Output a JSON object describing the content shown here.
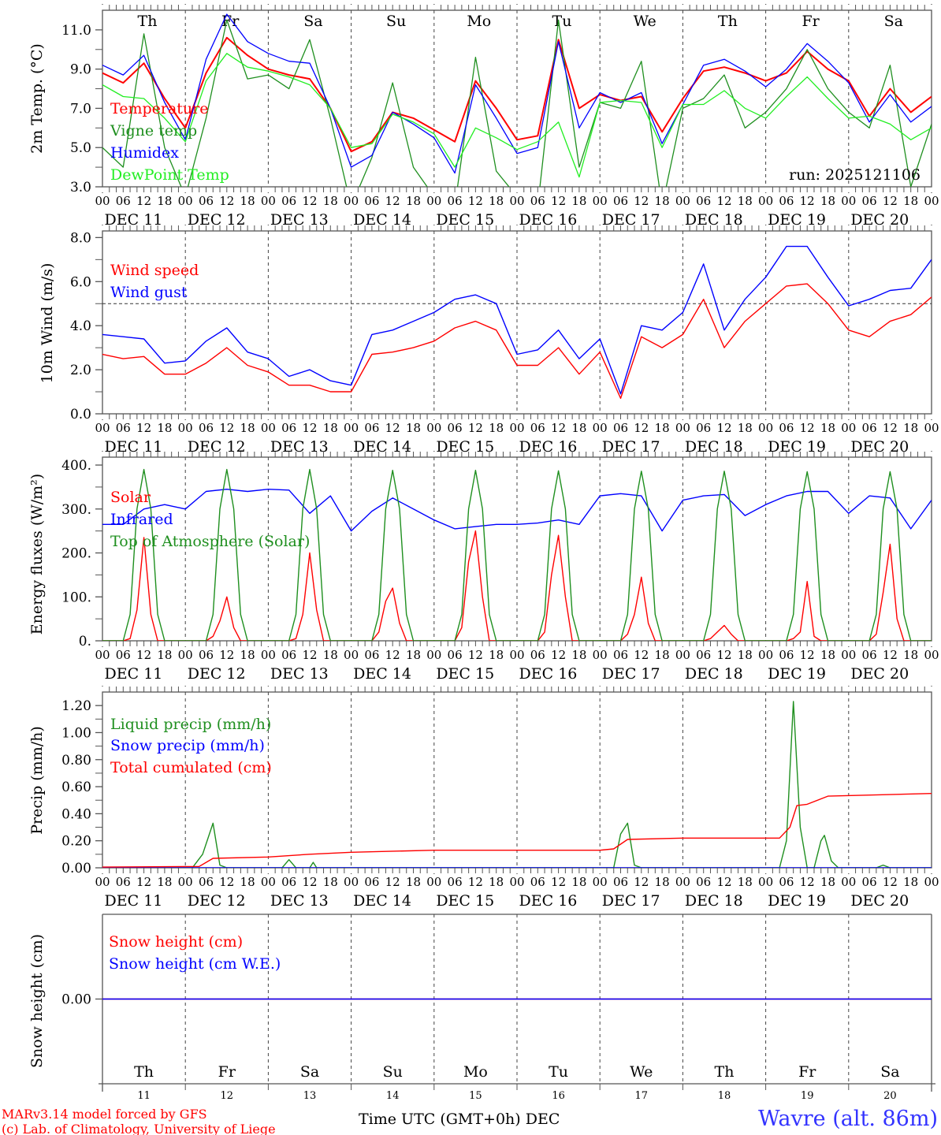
{
  "colors": {
    "temperature": "#ff0000",
    "vigne": "#1f8f1f",
    "humidex": "#0000ff",
    "dewpoint": "#22ee22",
    "weekend": "#ff0000",
    "weekday": "#000000"
  },
  "days": [
    {
      "name": "Th",
      "date": "11",
      "label": "DEC 11",
      "weekend": false
    },
    {
      "name": "Fr",
      "date": "12",
      "label": "DEC 12",
      "weekend": false
    },
    {
      "name": "Sa",
      "date": "13",
      "label": "DEC 13",
      "weekend": true
    },
    {
      "name": "Su",
      "date": "14",
      "label": "DEC 14",
      "weekend": true
    },
    {
      "name": "Mo",
      "date": "15",
      "label": "DEC 15",
      "weekend": false
    },
    {
      "name": "Tu",
      "date": "16",
      "label": "DEC 16",
      "weekend": false
    },
    {
      "name": "We",
      "date": "17",
      "label": "DEC 17",
      "weekend": false
    },
    {
      "name": "Th",
      "date": "18",
      "label": "DEC 18",
      "weekend": false
    },
    {
      "name": "Fr",
      "date": "19",
      "label": "DEC 19",
      "weekend": false
    },
    {
      "name": "Sa",
      "date": "20",
      "label": "DEC 20",
      "weekend": true
    }
  ],
  "hour_labels": [
    "00",
    "06",
    "12",
    "18"
  ],
  "footer": {
    "model": "MARv3.14 model forced by GFS",
    "copyright": "(c) Lab. of Climatology, University of Liege",
    "xlabel": "Time UTC (GMT+0h) DEC",
    "station": "Wavre (alt. 86m)"
  },
  "chart_data": [
    {
      "type": "line",
      "id": "temp",
      "ylabel": "2m Temp. (°C)",
      "ylim": [
        3,
        12
      ],
      "yticks": [
        3,
        5,
        7,
        9,
        11
      ],
      "ytick_labels": [
        "3.0",
        "5.0",
        "7.0",
        "9.0",
        "11.0"
      ],
      "annotation": "run: 2025121106",
      "x_step_hours": 6,
      "series": [
        {
          "name": "Temperature",
          "color_key": "temperature",
          "width": 2,
          "values": [
            8.8,
            8.3,
            9.3,
            7.5,
            6.0,
            8.8,
            10.6,
            9.7,
            9.0,
            8.7,
            8.5,
            7.0,
            4.8,
            5.3,
            6.8,
            6.5,
            5.9,
            5.3,
            8.4,
            7.0,
            5.4,
            5.6,
            10.5,
            7.0,
            7.7,
            7.4,
            7.6,
            5.8,
            7.5,
            8.9,
            9.1,
            8.8,
            8.4,
            8.8,
            9.9,
            9.0,
            8.4,
            6.6,
            8.0,
            6.8,
            7.6
          ]
        },
        {
          "name": "Vigne temp",
          "color_key": "vigne",
          "width": 1.3,
          "values": [
            5.0,
            4.0,
            10.8,
            5.0,
            2.5,
            6.5,
            11.5,
            8.5,
            8.7,
            8.0,
            10.5,
            6.5,
            2.0,
            4.5,
            8.3,
            4.0,
            2.5,
            2.0,
            9.6,
            3.8,
            2.5,
            2.0,
            11.5,
            4.0,
            7.3,
            7.0,
            9.4,
            2.0,
            7.0,
            7.5,
            8.7,
            6.0,
            6.8,
            8.0,
            10.0,
            8.0,
            6.8,
            6.0,
            9.2,
            3.0,
            6.2
          ]
        },
        {
          "name": "Humidex",
          "color_key": "humidex",
          "width": 1.3,
          "values": [
            9.2,
            8.7,
            9.7,
            7.3,
            5.4,
            9.5,
            11.8,
            10.4,
            9.8,
            9.4,
            9.3,
            7.0,
            4.0,
            4.6,
            6.8,
            6.2,
            5.5,
            3.7,
            8.2,
            6.5,
            4.7,
            5.0,
            10.4,
            6.0,
            7.8,
            7.3,
            7.8,
            5.2,
            7.2,
            9.2,
            9.5,
            8.9,
            8.1,
            9.0,
            10.3,
            9.4,
            8.3,
            6.3,
            7.7,
            6.3,
            7.1
          ]
        },
        {
          "name": "DewPoint Temp",
          "color_key": "dewpoint",
          "width": 1.3,
          "values": [
            8.2,
            7.6,
            7.5,
            6.5,
            5.3,
            8.4,
            9.8,
            9.1,
            8.9,
            8.6,
            8.2,
            7.0,
            5.0,
            5.2,
            6.7,
            6.3,
            5.7,
            4.0,
            6.0,
            5.5,
            4.9,
            5.3,
            6.3,
            3.5,
            7.3,
            7.4,
            7.3,
            5.0,
            7.2,
            7.2,
            7.9,
            7.0,
            6.5,
            7.6,
            8.6,
            7.5,
            6.5,
            6.6,
            6.2,
            5.4,
            6.0
          ]
        }
      ]
    },
    {
      "type": "line",
      "id": "wind",
      "ylabel": "10m Wind (m/s)",
      "ylim": [
        0,
        8.3
      ],
      "yticks": [
        0,
        2,
        4,
        6,
        8
      ],
      "ytick_labels": [
        "0.0",
        "2.0",
        "4.0",
        "6.0",
        "8.0"
      ],
      "reference_line": 5.0,
      "x_step_hours": 6,
      "series": [
        {
          "name": "Wind speed",
          "color": "#ff0000",
          "values": [
            2.7,
            2.5,
            2.6,
            1.8,
            1.8,
            2.3,
            3.0,
            2.2,
            1.9,
            1.3,
            1.3,
            1.0,
            1.0,
            2.7,
            2.8,
            3.0,
            3.3,
            3.9,
            4.2,
            3.8,
            2.2,
            2.2,
            3.0,
            1.8,
            2.8,
            0.7,
            3.5,
            3.0,
            3.6,
            5.2,
            3.0,
            4.2,
            5.0,
            5.8,
            5.9,
            5.0,
            3.8,
            3.5,
            4.2,
            4.5,
            5.3
          ]
        },
        {
          "name": "Wind gust",
          "color": "#0000ff",
          "values": [
            3.6,
            3.5,
            3.4,
            2.3,
            2.4,
            3.3,
            3.9,
            2.8,
            2.5,
            1.7,
            2.0,
            1.5,
            1.3,
            3.6,
            3.8,
            4.2,
            4.6,
            5.2,
            5.4,
            5.0,
            2.7,
            2.9,
            3.8,
            2.5,
            3.4,
            0.9,
            4.0,
            3.8,
            4.6,
            6.8,
            3.8,
            5.2,
            6.2,
            7.6,
            7.6,
            6.2,
            4.9,
            5.2,
            5.6,
            5.7,
            7.0
          ]
        }
      ]
    },
    {
      "type": "line",
      "id": "energy",
      "ylabel": "Energy fluxes (W/m²)",
      "ylim": [
        0,
        418
      ],
      "yticks": [
        0,
        100,
        200,
        300,
        400
      ],
      "ytick_labels": [
        "0.",
        "100.",
        "200.",
        "300.",
        "400."
      ],
      "series": [
        {
          "name": "Solar",
          "color": "#ff0000",
          "daylight_hours": [
            6,
            8,
            10,
            12,
            14,
            16,
            18
          ],
          "per_day": [
            [
              0,
              5,
              70,
              235,
              60,
              0,
              0
            ],
            [
              0,
              10,
              45,
              100,
              30,
              0,
              0
            ],
            [
              0,
              5,
              60,
              200,
              70,
              0,
              0
            ],
            [
              0,
              20,
              90,
              120,
              40,
              0,
              0
            ],
            [
              0,
              30,
              180,
              250,
              100,
              0,
              0
            ],
            [
              0,
              20,
              150,
              240,
              100,
              0,
              0
            ],
            [
              0,
              15,
              60,
              145,
              40,
              0,
              0
            ],
            [
              0,
              5,
              20,
              35,
              15,
              0,
              0
            ],
            [
              0,
              5,
              20,
              135,
              10,
              0,
              0
            ],
            [
              0,
              15,
              110,
              220,
              50,
              0,
              0
            ]
          ]
        },
        {
          "name": "Infrared",
          "color": "#0000ff",
          "x_step_hours": 6,
          "values": [
            265,
            265,
            300,
            310,
            300,
            340,
            345,
            340,
            345,
            343,
            290,
            330,
            250,
            295,
            325,
            300,
            275,
            255,
            260,
            265,
            265,
            268,
            275,
            265,
            330,
            335,
            330,
            250,
            320,
            330,
            333,
            285,
            310,
            330,
            340,
            340,
            290,
            330,
            325,
            255,
            320
          ]
        },
        {
          "name": "Top of Atmosphere (Solar)",
          "color": "#1f8f1f",
          "daylight_hours": [
            6,
            8,
            10,
            12,
            14,
            16,
            18
          ],
          "per_day": [
            [
              0,
              60,
              300,
              390,
              300,
              60,
              0
            ],
            [
              0,
              60,
              300,
              390,
              300,
              60,
              0
            ],
            [
              0,
              60,
              300,
              390,
              300,
              60,
              0
            ],
            [
              0,
              60,
              300,
              388,
              300,
              60,
              0
            ],
            [
              0,
              60,
              300,
              388,
              300,
              60,
              0
            ],
            [
              0,
              60,
              300,
              387,
              300,
              60,
              0
            ],
            [
              0,
              60,
              300,
              386,
              300,
              60,
              0
            ],
            [
              0,
              60,
              300,
              386,
              300,
              60,
              0
            ],
            [
              0,
              60,
              300,
              385,
              300,
              60,
              0
            ],
            [
              0,
              60,
              300,
              385,
              300,
              60,
              0
            ]
          ]
        }
      ]
    },
    {
      "type": "line",
      "id": "precip",
      "ylabel": "Precip (mm/h)",
      "ylim": [
        0,
        1.3
      ],
      "yticks": [
        0,
        0.2,
        0.4,
        0.6,
        0.8,
        1.0,
        1.2
      ],
      "ytick_labels": [
        "0.00",
        "0.20",
        "0.40",
        "0.60",
        "0.80",
        "1.00",
        "1.20"
      ],
      "series": [
        {
          "name": "Liquid precip (mm/h)",
          "color": "#1f8f1f",
          "points": [
            [
              0,
              0
            ],
            [
              26,
              0
            ],
            [
              29,
              0.1
            ],
            [
              32,
              0.33
            ],
            [
              34,
              0.02
            ],
            [
              36,
              0
            ],
            [
              52,
              0
            ],
            [
              54,
              0.06
            ],
            [
              56,
              0
            ],
            [
              60,
              0
            ],
            [
              61,
              0.04
            ],
            [
              62,
              0
            ],
            [
              148,
              0
            ],
            [
              150,
              0.25
            ],
            [
              152,
              0.33
            ],
            [
              154,
              0.02
            ],
            [
              156,
              0
            ],
            [
              196,
              0
            ],
            [
              198,
              0.2
            ],
            [
              200,
              1.23
            ],
            [
              202,
              0.3
            ],
            [
              204,
              0
            ],
            [
              206,
              0
            ],
            [
              208,
              0.2
            ],
            [
              209,
              0.24
            ],
            [
              211,
              0.05
            ],
            [
              213,
              0
            ],
            [
              224,
              0
            ],
            [
              226,
              0.02
            ],
            [
              228,
              0
            ],
            [
              240,
              0
            ]
          ]
        },
        {
          "name": "Snow precip (mm/h)",
          "color": "#0000ff",
          "points": [
            [
              0,
              0
            ],
            [
              240,
              0
            ]
          ]
        },
        {
          "name": "Total cumulated (cm)",
          "color": "#ff0000",
          "points": [
            [
              0,
              0.005
            ],
            [
              28,
              0.01
            ],
            [
              32,
              0.07
            ],
            [
              48,
              0.08
            ],
            [
              60,
              0.1
            ],
            [
              72,
              0.115
            ],
            [
              96,
              0.13
            ],
            [
              144,
              0.13
            ],
            [
              148,
              0.14
            ],
            [
              152,
              0.21
            ],
            [
              168,
              0.22
            ],
            [
              196,
              0.22
            ],
            [
              199,
              0.3
            ],
            [
              201,
              0.46
            ],
            [
              204,
              0.47
            ],
            [
              210,
              0.53
            ],
            [
              240,
              0.55
            ]
          ]
        }
      ]
    },
    {
      "type": "line",
      "id": "snow",
      "ylabel": "Snow height (cm)",
      "ylim": [
        -1,
        1
      ],
      "yticks": [
        0
      ],
      "ytick_labels": [
        "0.00"
      ],
      "series": [
        {
          "name": "Snow height (cm)",
          "color": "#ff0000",
          "points": [
            [
              0,
              0
            ],
            [
              240,
              0
            ]
          ]
        },
        {
          "name": "Snow height (cm W.E.)",
          "color": "#0000ff",
          "points": [
            [
              0,
              0
            ],
            [
              240,
              0
            ]
          ]
        }
      ]
    }
  ]
}
